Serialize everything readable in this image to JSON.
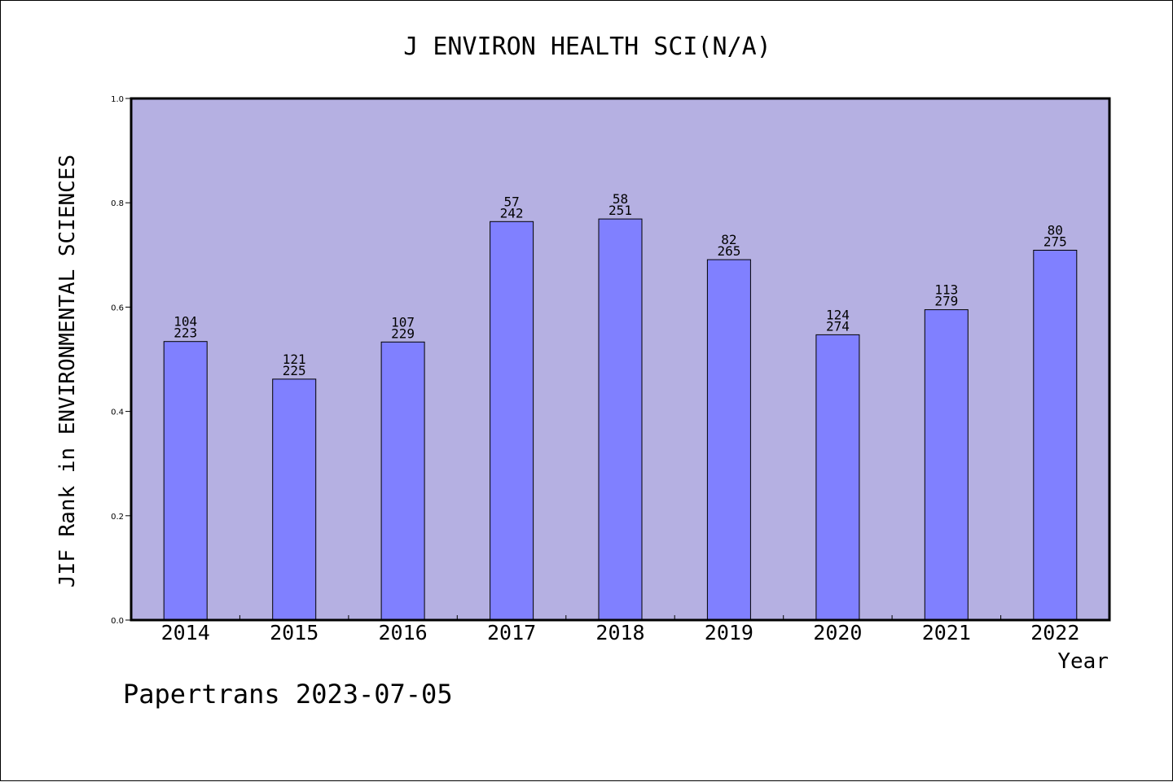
{
  "chart_data": {
    "type": "bar",
    "title": "J ENVIRON HEALTH SCI(N/A)",
    "xlabel": "Year",
    "ylabel": "JIF Rank in ENVIRONMENTAL SCIENCES",
    "ylim": [
      0,
      1.0
    ],
    "yticks": [
      "0.0",
      "0.2",
      "0.4",
      "0.6",
      "0.8",
      "1.0"
    ],
    "categories": [
      "2014",
      "2015",
      "2016",
      "2017",
      "2018",
      "2019",
      "2020",
      "2021",
      "2022"
    ],
    "values": [
      0.534,
      0.462,
      0.533,
      0.764,
      0.769,
      0.691,
      0.547,
      0.595,
      0.709
    ],
    "rank": [
      "104",
      "121",
      "107",
      "57",
      "58",
      "82",
      "124",
      "113",
      "80"
    ],
    "total": [
      "223",
      "225",
      "229",
      "242",
      "251",
      "265",
      "274",
      "279",
      "275"
    ],
    "grid": false,
    "colors": {
      "plot_background": "#b5b0e2",
      "bar_fill": "#8080ff",
      "bar_stroke": "#000000"
    }
  },
  "footer": {
    "credit": "Papertrans 2023-07-05"
  }
}
